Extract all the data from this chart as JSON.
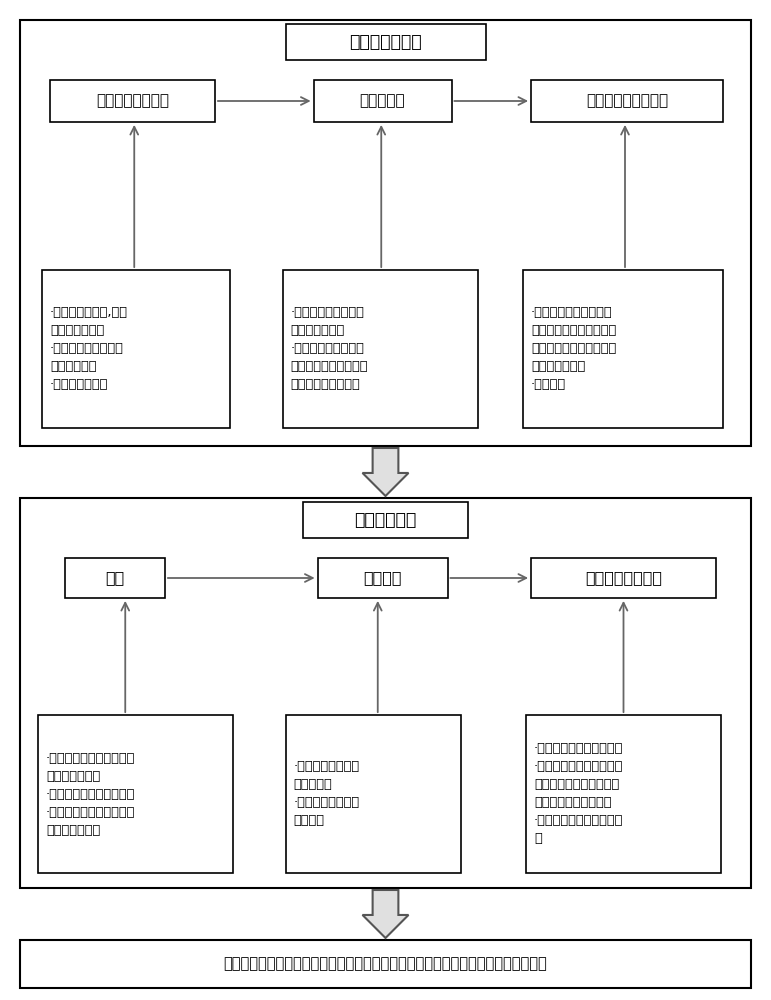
{
  "title_top": "制样前准备工作",
  "title_mid": "试样制备工作",
  "footer_text": "最终制得能反映原岩应力状态且能体现组合角效应以及厚度效应的真三轴复合体试样",
  "top_boxes": [
    "原岩应力状态获取",
    "岩样的获取",
    "软弱夹层材料的获取"
  ],
  "top_detail_boxes": [
    "·通过水压致裂法,使试\n样表面产生破裂\n·通过分析裂缝痕迹计\n算破裂面位置\n·计算三维地应力",
    "·批量制得不同组合角\n下的长方体岩样\n·基于现场岩体结构面\n的扫描数据对试样岩石\n结构面进行打磨处理",
    "·将现场取得的软弱夹层\n材料或按比例混合均匀配\n制的软弱夹层相似材料调\n节至所需含水率\n·养护处理"
  ],
  "mid_boxes": [
    "装样",
    "加载制样",
    "试样的标准化处理"
  ],
  "mid_detail_boxes": [
    "·称取与设定厚度对应质量\n的软弱夹层材料\n·旋转支座调整至所需角度\n·将材料依次置于试样模具\n中并做压实处理",
    "·通过千斤顶和压头\n对试样加载\n·将试样加载至原岩\n应力水平",
    "·试样脱模并测量试样尺寸\n·对有偏差的试样精细打磨\n至所需尺寸并确保试样表\n面平整度达到试验标准\n·对合格试样做编号养护处\n理"
  ],
  "bg_color": "#ffffff",
  "text_color": "#000000"
}
